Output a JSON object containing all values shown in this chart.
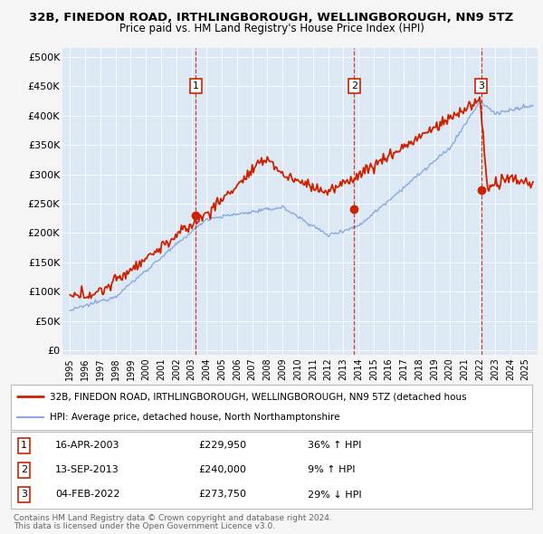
{
  "title1": "32B, FINEDON ROAD, IRTHLINGBOROUGH, WELLINGBOROUGH, NN9 5TZ",
  "title2": "Price paid vs. HM Land Registry's House Price Index (HPI)",
  "background_color": "#f5f5f5",
  "plot_bg_color": "#dde8f5",
  "red_color": "#cc2200",
  "blue_color": "#88aadd",
  "transactions": [
    {
      "num": 1,
      "date": "16-APR-2003",
      "price": 229950,
      "date_x": 2003.29,
      "change": "36% ↑ HPI"
    },
    {
      "num": 2,
      "date": "13-SEP-2013",
      "price": 240000,
      "date_x": 2013.71,
      "change": "9% ↑ HPI"
    },
    {
      "num": 3,
      "date": "04-FEB-2022",
      "price": 273750,
      "date_x": 2022.09,
      "change": "29% ↓ HPI"
    }
  ],
  "legend_label1": "32B, FINEDON ROAD, IRTHLINGBOROUGH, WELLINGBOROUGH, NN9 5TZ (detached hous",
  "legend_label2": "HPI: Average price, detached house, North Northamptonshire",
  "footer1": "Contains HM Land Registry data © Crown copyright and database right 2024.",
  "footer2": "This data is licensed under the Open Government Licence v3.0.",
  "yticks": [
    0,
    50000,
    100000,
    150000,
    200000,
    250000,
    300000,
    350000,
    400000,
    450000,
    500000
  ],
  "ylim": [
    -8000,
    515000
  ],
  "xlim": [
    1994.5,
    2025.8
  ],
  "xticks": [
    1995,
    1996,
    1997,
    1998,
    1999,
    2000,
    2001,
    2002,
    2003,
    2004,
    2005,
    2006,
    2007,
    2008,
    2009,
    2010,
    2011,
    2012,
    2013,
    2014,
    2015,
    2016,
    2017,
    2018,
    2019,
    2020,
    2021,
    2022,
    2023,
    2024,
    2025
  ]
}
